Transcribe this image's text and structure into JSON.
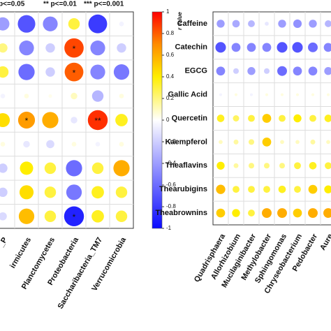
{
  "chart_data": [
    {
      "type": "correlation",
      "legend": [
        "p<=0.05",
        "** p<=0.01",
        "*** p<=0.001"
      ],
      "rows": [
        null,
        null,
        null,
        null,
        null,
        null,
        null,
        null,
        null
      ],
      "columns": [
        "_P",
        "irmicutes",
        "Planctomycetes",
        "Proteobacteria",
        "Saccharibacteria_TM7",
        "Verrucomicrobia"
      ],
      "values": [
        [
          -0.4,
          -0.7,
          -0.5,
          0.3,
          -0.8,
          -0.05
        ],
        [
          0.2,
          -0.5,
          -0.2,
          0.85,
          -0.5,
          -0.2
        ],
        [
          0.3,
          -0.6,
          -0.2,
          0.8,
          -0.5,
          -0.55
        ],
        [
          -0.05,
          0.05,
          0.03,
          0.1,
          -0.3,
          0.05
        ],
        [
          0.45,
          0.65,
          0.6,
          -0.1,
          0.9,
          0.35
        ],
        [
          0.05,
          -0.1,
          -0.15,
          0.05,
          -0.05,
          0.05
        ],
        [
          -0.2,
          0.4,
          0.3,
          -0.6,
          0.3,
          0.6
        ],
        [
          -0.2,
          0.45,
          0.3,
          -0.55,
          0.35,
          0.3
        ],
        [
          -0.15,
          0.55,
          0.3,
          -0.9,
          0.35,
          0.3
        ]
      ],
      "stars": [
        [
          null,
          null,
          null,
          null,
          null,
          null
        ],
        [
          null,
          null,
          null,
          "*",
          null,
          null
        ],
        [
          null,
          null,
          null,
          "*",
          null,
          null
        ],
        [
          null,
          null,
          null,
          null,
          null,
          null
        ],
        [
          null,
          "*",
          null,
          null,
          "**",
          null
        ],
        [
          null,
          null,
          null,
          null,
          null,
          null
        ],
        [
          null,
          null,
          null,
          null,
          null,
          null
        ],
        [
          null,
          null,
          null,
          null,
          null,
          null
        ],
        [
          null,
          null,
          null,
          "*",
          null,
          null
        ]
      ],
      "colorbar": {
        "label": "r value",
        "ylim": [
          -1,
          1
        ],
        "yticks": [
          1,
          0.8,
          0.6,
          0.4,
          0.2,
          0,
          -0.2,
          -0.4,
          -0.6,
          -0.8,
          -1
        ]
      },
      "colorscale": [
        {
          "value": -1,
          "color": "#0a0aff"
        },
        {
          "value": 0,
          "color": "#ffffff"
        },
        {
          "value": 0.4,
          "color": "#ffee00"
        },
        {
          "value": 0.7,
          "color": "#ff8c00"
        },
        {
          "value": 1,
          "color": "#ff0000"
        }
      ]
    },
    {
      "type": "correlation",
      "rows": [
        "Caffeine",
        "Catechin",
        "EGCG",
        "Gallic Acid",
        "Quercetin",
        "Kaempferol",
        "Theaflavins",
        "Thearubigins",
        "Theabrownins"
      ],
      "columns": [
        "Quadrisphaera",
        "Allorhizobium",
        "Mucilaginibacter",
        "Methylobacter",
        "Sphingomonas",
        "Chryseobacterium",
        "Pedobacter",
        "Aure"
      ],
      "values": [
        [
          -0.4,
          -0.35,
          -0.3,
          -0.1,
          -0.4,
          -0.45,
          -0.4,
          -0.3
        ],
        [
          -0.7,
          -0.5,
          -0.5,
          -0.5,
          -0.7,
          -0.7,
          -0.6,
          -0.5
        ],
        [
          -0.5,
          -0.2,
          -0.4,
          -0.2,
          -0.6,
          -0.5,
          -0.5,
          -0.4
        ],
        [
          -0.05,
          0.05,
          -0.05,
          0.05,
          0.05,
          0.05,
          0.05,
          0.05
        ],
        [
          0.35,
          0.25,
          0.3,
          0.5,
          0.3,
          0.4,
          0.3,
          0.35
        ],
        [
          0.1,
          0.15,
          0.2,
          0.5,
          0.1,
          0.1,
          0.15,
          0.1
        ],
        [
          0.4,
          0.15,
          0.2,
          0.2,
          0.2,
          0.3,
          0.35,
          0.3
        ],
        [
          0.55,
          0.3,
          0.3,
          0.3,
          0.35,
          0.3,
          0.5,
          0.4
        ],
        [
          0.5,
          0.4,
          0.3,
          0.6,
          0.6,
          0.5,
          0.6,
          0.6
        ]
      ]
    }
  ]
}
